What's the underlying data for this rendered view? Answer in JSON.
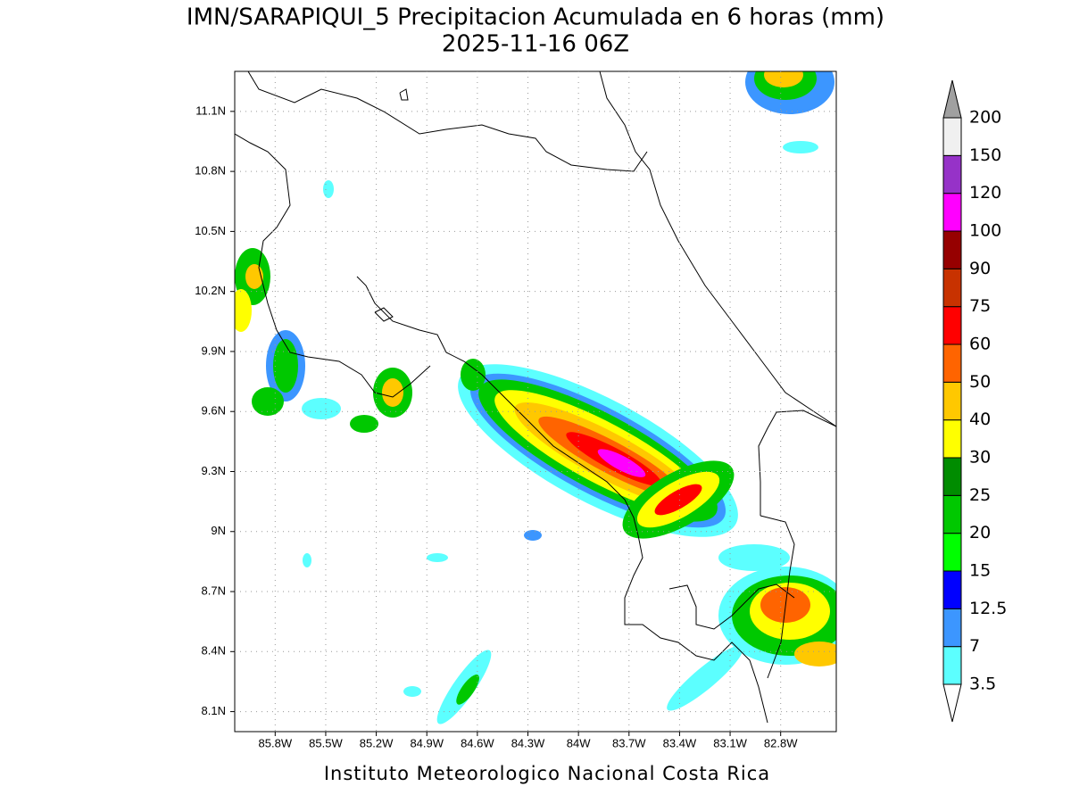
{
  "title": "IMN/SARAPIQUI_5 Precipitacion Acumulada en 6 horas (mm)",
  "subtitle": "2025-11-16 06Z",
  "footer": "Instituto Meteorologico Nacional Costa Rica",
  "map": {
    "xlim": [
      -86.04,
      -82.47
    ],
    "ylim": [
      8.0,
      11.3
    ],
    "xticks": [
      {
        "value": -85.8,
        "label": "85.8W"
      },
      {
        "value": -85.5,
        "label": "85.5W"
      },
      {
        "value": -85.2,
        "label": "85.2W"
      },
      {
        "value": -84.9,
        "label": "84.9W"
      },
      {
        "value": -84.6,
        "label": "84.6W"
      },
      {
        "value": -84.3,
        "label": "84.3W"
      },
      {
        "value": -84.0,
        "label": "84W"
      },
      {
        "value": -83.7,
        "label": "83.7W"
      },
      {
        "value": -83.4,
        "label": "83.4W"
      },
      {
        "value": -83.1,
        "label": "83.1W"
      },
      {
        "value": -82.8,
        "label": "82.8W"
      }
    ],
    "yticks": [
      {
        "value": 8.1,
        "label": "8.1N"
      },
      {
        "value": 8.4,
        "label": "8.4N"
      },
      {
        "value": 8.7,
        "label": "8.7N"
      },
      {
        "value": 9.0,
        "label": "9N"
      },
      {
        "value": 9.3,
        "label": "9.3N"
      },
      {
        "value": 9.6,
        "label": "9.6N"
      },
      {
        "value": 9.9,
        "label": "9.9N"
      },
      {
        "value": 10.2,
        "label": "10.2N"
      },
      {
        "value": 10.5,
        "label": "10.5N"
      },
      {
        "value": 10.8,
        "label": "10.8N"
      },
      {
        "value": 11.1,
        "label": "11.1N"
      }
    ],
    "grid": true
  },
  "colorbar": {
    "levels": [
      3.5,
      7,
      12.5,
      15,
      20,
      25,
      30,
      40,
      50,
      60,
      75,
      90,
      100,
      120,
      150,
      200
    ],
    "colors": [
      "#5cffff",
      "#3c96ff",
      "#0000ff",
      "#00ff00",
      "#00c800",
      "#008c00",
      "#ffff00",
      "#ffc800",
      "#ff6400",
      "#ff0000",
      "#c83200",
      "#960000",
      "#ff00ff",
      "#9632c8",
      "#f0f0f0"
    ],
    "under_color": "#ffffff",
    "over_color": "#a0a0a0"
  }
}
